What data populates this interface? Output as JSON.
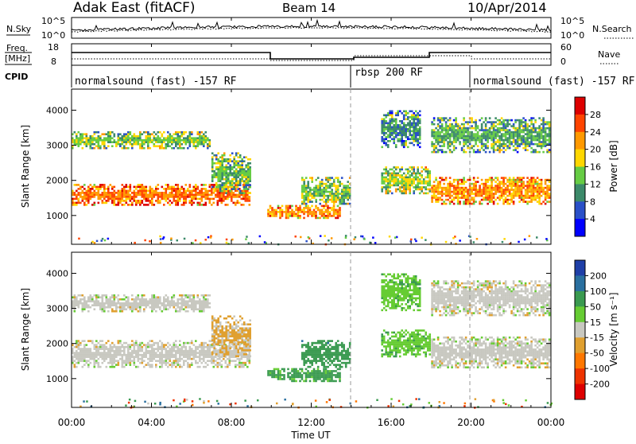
{
  "header": {
    "station": "Adak East (fitACF)",
    "beam": "Beam 14",
    "date": "10/Apr/2014"
  },
  "noise_panel": {
    "left_label": "N.Sky",
    "right_label": "N.Search",
    "left_ticks": [
      "10^5",
      "10^0"
    ],
    "right_ticks": [
      "10^5",
      "10^0"
    ]
  },
  "freq_panel": {
    "left_label_1": "Freq.",
    "left_label_2": "[MHz]",
    "left_ticks": [
      "18",
      "8"
    ],
    "right_label": "Nave",
    "right_ticks": [
      "60",
      "0"
    ]
  },
  "cpid": {
    "label": "CPID",
    "segments": [
      {
        "text": "normalsound (fast) -157 RF",
        "start_hour": 0
      },
      {
        "text": "rbsp 200 RF",
        "start_hour": 14
      },
      {
        "text": "normalsound (fast) -157 RF",
        "start_hour": 20.1
      }
    ]
  },
  "chart_data": [
    {
      "type": "heatmap",
      "name": "Power",
      "xlabel": "Time UT",
      "ylabel": "Slant Range [km]",
      "colorbar_label": "Power [dB]",
      "xlim": [
        0,
        24
      ],
      "ylim": [
        180,
        4600
      ],
      "x_ticks": [
        0,
        4,
        8,
        12,
        16,
        20,
        24
      ],
      "y_ticks": [
        1000,
        2000,
        3000,
        4000
      ],
      "colorbar_ticks": [
        4,
        8,
        12,
        16,
        20,
        24,
        28
      ],
      "colorbar_colors": [
        "#0000ff",
        "#2a50c8",
        "#3c8a6a",
        "#66cc44",
        "#ffd700",
        "#ff9900",
        "#ff4400",
        "#dd0000"
      ],
      "bands": [
        {
          "t0": 0.0,
          "t1": 7.0,
          "r0": 2900,
          "r1": 3400,
          "value": 14
        },
        {
          "t0": 0.0,
          "t1": 9.0,
          "r0": 1300,
          "r1": 1900,
          "value": 24
        },
        {
          "t0": 7.0,
          "t1": 9.0,
          "r0": 1600,
          "r1": 2800,
          "value": 13
        },
        {
          "t0": 9.8,
          "t1": 13.5,
          "r0": 900,
          "r1": 1300,
          "value": 22
        },
        {
          "t0": 11.5,
          "t1": 14.0,
          "r0": 1300,
          "r1": 2100,
          "value": 14
        },
        {
          "t0": 15.5,
          "t1": 18.0,
          "r0": 1600,
          "r1": 2400,
          "value": 15
        },
        {
          "t0": 15.5,
          "t1": 17.5,
          "r0": 2900,
          "r1": 4000,
          "value": 10
        },
        {
          "t0": 18.0,
          "t1": 24.0,
          "r0": 1300,
          "r1": 2100,
          "value": 22
        },
        {
          "t0": 18.0,
          "t1": 24.0,
          "r0": 2800,
          "r1": 3800,
          "value": 12
        }
      ]
    },
    {
      "type": "heatmap",
      "name": "Velocity",
      "xlabel": "Time UT",
      "ylabel": "Slant Range [km]",
      "colorbar_label": "Velocity [m s⁻¹]",
      "xlim": [
        0,
        24
      ],
      "ylim": [
        180,
        4600
      ],
      "x_ticks": [
        0,
        4,
        8,
        12,
        16,
        20,
        24
      ],
      "y_ticks": [
        1000,
        2000,
        3000,
        4000
      ],
      "colorbar_ticks": [
        200,
        100,
        50,
        15,
        -15,
        -50,
        -100,
        -200
      ],
      "colorbar_colors": [
        "#1f3fa8",
        "#2a70a0",
        "#3a9a50",
        "#66cc33",
        "#c8c8c0",
        "#e0a030",
        "#ff7700",
        "#ee3300",
        "#dd0000"
      ],
      "bands": [
        {
          "t0": 0.0,
          "t1": 7.0,
          "r0": 2900,
          "r1": 3400,
          "value": 0
        },
        {
          "t0": 0.0,
          "t1": 9.0,
          "r0": 1300,
          "r1": 2100,
          "value": 0
        },
        {
          "t0": 7.0,
          "t1": 9.0,
          "r0": 1600,
          "r1": 2800,
          "value": -20
        },
        {
          "t0": 9.8,
          "t1": 13.5,
          "r0": 900,
          "r1": 1300,
          "value": 60
        },
        {
          "t0": 11.5,
          "t1": 14.0,
          "r0": 1300,
          "r1": 2100,
          "value": 80
        },
        {
          "t0": 15.5,
          "t1": 18.0,
          "r0": 1600,
          "r1": 2400,
          "value": 40
        },
        {
          "t0": 15.5,
          "t1": 17.5,
          "r0": 2900,
          "r1": 4000,
          "value": 40
        },
        {
          "t0": 18.0,
          "t1": 24.0,
          "r0": 1300,
          "r1": 2200,
          "value": 0
        },
        {
          "t0": 18.0,
          "t1": 24.0,
          "r0": 2800,
          "r1": 3800,
          "value": 0
        }
      ]
    }
  ],
  "x_tick_labels": [
    "00:00",
    "04:00",
    "08:00",
    "12:00",
    "16:00",
    "20:00",
    "00:00"
  ],
  "y_tick_labels": [
    "1000",
    "2000",
    "3000",
    "4000"
  ],
  "xlabel": "Time UT",
  "ylabel": "Slant Range [km]",
  "power_colorbar_label": "Power [dB]",
  "power_colorbar_ticks": [
    "28",
    "24",
    "20",
    "16",
    "12",
    "8",
    "4"
  ],
  "velocity_colorbar_label": "Velocity [m s⁻¹]",
  "velocity_colorbar_ticks": [
    "200",
    "100",
    "50",
    "15",
    "-15",
    "-50",
    "-100",
    "-200"
  ]
}
